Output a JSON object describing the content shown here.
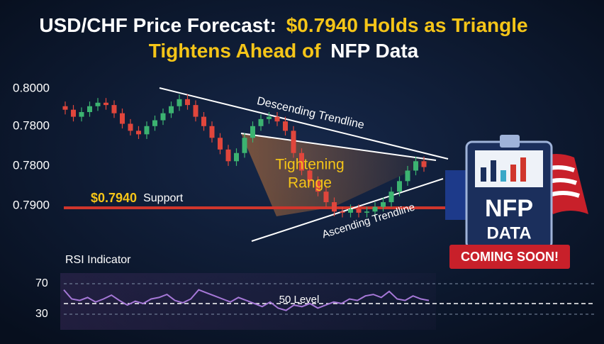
{
  "chart_data": [
    {
      "type": "candlestick",
      "title": [
        "USD/CHF Price Forecast:",
        "$0.7940 Holds as Triangle",
        "Tightens Ahead of",
        "NFP Data"
      ],
      "y_axis_labels": [
        "0.8000",
        "0.7800",
        "0.7800",
        "0.7900"
      ],
      "ylim": [
        0.79,
        0.8
      ],
      "up_color": "#3cb371",
      "down_color": "#e0463c",
      "open": [
        0.7985,
        0.7982,
        0.7976,
        0.798,
        0.7985,
        0.7988,
        0.7986,
        0.7979,
        0.797,
        0.7964,
        0.7961,
        0.7968,
        0.7973,
        0.7979,
        0.7985,
        0.7991,
        0.7986,
        0.7976,
        0.7968,
        0.7958,
        0.7948,
        0.7938,
        0.7945,
        0.7958,
        0.7968,
        0.7974,
        0.7976,
        0.7972,
        0.7964,
        0.7945,
        0.793,
        0.7921,
        0.7912,
        0.7903,
        0.7895,
        0.7894,
        0.7897,
        0.7894,
        0.7895,
        0.7899,
        0.7903,
        0.7912,
        0.7921,
        0.793,
        0.7938
      ],
      "high": [
        0.7989,
        0.7986,
        0.7984,
        0.7989,
        0.7992,
        0.7992,
        0.799,
        0.7983,
        0.7974,
        0.7968,
        0.7972,
        0.7977,
        0.7983,
        0.7989,
        0.7995,
        0.7995,
        0.799,
        0.798,
        0.7972,
        0.7962,
        0.7952,
        0.7949,
        0.7962,
        0.7972,
        0.7978,
        0.798,
        0.798,
        0.7976,
        0.7968,
        0.7949,
        0.7934,
        0.7925,
        0.7916,
        0.7907,
        0.7899,
        0.7901,
        0.7901,
        0.7899,
        0.7903,
        0.7907,
        0.7916,
        0.7925,
        0.7934,
        0.7942,
        0.7942
      ],
      "low": [
        0.7978,
        0.7972,
        0.7972,
        0.7976,
        0.7981,
        0.7982,
        0.7975,
        0.7966,
        0.796,
        0.7957,
        0.7957,
        0.7964,
        0.7969,
        0.7975,
        0.7981,
        0.7982,
        0.7972,
        0.7964,
        0.7954,
        0.7944,
        0.7934,
        0.7934,
        0.7941,
        0.7954,
        0.7964,
        0.797,
        0.7968,
        0.796,
        0.7941,
        0.7926,
        0.7917,
        0.7908,
        0.7899,
        0.7891,
        0.789,
        0.789,
        0.789,
        0.789,
        0.7891,
        0.7895,
        0.7899,
        0.7908,
        0.7917,
        0.7926,
        0.7929
      ],
      "close": [
        0.7982,
        0.7976,
        0.798,
        0.7985,
        0.7988,
        0.7986,
        0.7979,
        0.797,
        0.7964,
        0.7961,
        0.7968,
        0.7973,
        0.7979,
        0.7985,
        0.7991,
        0.7986,
        0.7976,
        0.7968,
        0.7958,
        0.7948,
        0.7938,
        0.7945,
        0.7958,
        0.7968,
        0.7974,
        0.7976,
        0.7972,
        0.7964,
        0.7945,
        0.793,
        0.7921,
        0.7912,
        0.7903,
        0.7895,
        0.7894,
        0.7897,
        0.7894,
        0.7895,
        0.7899,
        0.7903,
        0.7912,
        0.7921,
        0.793,
        0.7938,
        0.7933
      ],
      "annotations": [
        "Descending Trendline",
        "Tightening",
        "Range",
        "$0.7940",
        "Support",
        "Ascending Trendline"
      ],
      "badge": [
        "NFP",
        "DATA",
        "COMING SOON!"
      ]
    },
    {
      "type": "line",
      "title": "RSI Indicator",
      "color": "#a678d8",
      "ylim": [
        30,
        70
      ],
      "yticks": [
        30,
        70
      ],
      "annotation": "50 Level",
      "values": [
        62,
        50,
        48,
        52,
        46,
        50,
        55,
        48,
        42,
        47,
        44,
        50,
        52,
        56,
        48,
        45,
        50,
        62,
        58,
        54,
        50,
        46,
        52,
        48,
        44,
        40,
        46,
        38,
        35,
        42,
        40,
        44,
        38,
        42,
        46,
        44,
        50,
        48,
        54,
        56,
        52,
        60,
        50,
        48,
        54,
        50,
        48
      ]
    }
  ]
}
